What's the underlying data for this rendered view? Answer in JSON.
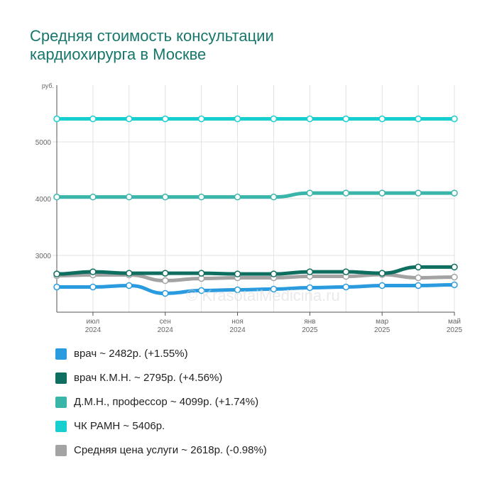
{
  "title": {
    "line1": "Средняя стоимость консультации",
    "line2": "кардиохирурга в Москве"
  },
  "watermark": "© KrasotaiMedicina.ru",
  "legend": [
    {
      "label": "врач ~ 2482р. (+1.55%)",
      "color": "#2b9be0"
    },
    {
      "label": "врач К.М.Н. ~ 2795р. (+4.56%)",
      "color": "#0e6e60"
    },
    {
      "label": "Д.М.Н., профессор ~ 4099р. (+1.74%)",
      "color": "#3ab5aa"
    },
    {
      "label": "ЧК РАМН ~ 5406р.",
      "color": "#18cfcf"
    },
    {
      "label": "Средняя цена услуги ~ 2618р. (-0.98%)",
      "color": "#a3a3a3"
    }
  ],
  "chart_data": {
    "type": "line",
    "y_unit": "руб.",
    "ylim": [
      2000,
      6000
    ],
    "y_ticks": [
      3000,
      4000,
      5000
    ],
    "x_ticks": [
      {
        "month": "июл",
        "year": "2024",
        "index": 1
      },
      {
        "month": "сен",
        "year": "2024",
        "index": 3
      },
      {
        "month": "ноя",
        "year": "2024",
        "index": 5
      },
      {
        "month": "янв",
        "year": "2025",
        "index": 7
      },
      {
        "month": "мар",
        "year": "2025",
        "index": 9
      },
      {
        "month": "май",
        "year": "2025",
        "index": 11
      }
    ],
    "x": [
      "2024-06",
      "2024-07",
      "2024-08",
      "2024-09",
      "2024-10",
      "2024-11",
      "2024-12",
      "2025-01",
      "2025-02",
      "2025-03",
      "2025-04",
      "2025-05"
    ],
    "grid": true,
    "series": [
      {
        "name": "ЧК РАМН ~ 5406р.",
        "color": "#18cfcf",
        "values": [
          5406,
          5406,
          5406,
          5406,
          5406,
          5406,
          5406,
          5406,
          5406,
          5406,
          5406,
          5406
        ]
      },
      {
        "name": "Д.М.Н., профессор ~ 4099р. (+1.74%)",
        "color": "#3ab5aa",
        "values": [
          4029,
          4029,
          4029,
          4029,
          4029,
          4029,
          4029,
          4099,
          4099,
          4099,
          4099,
          4099
        ]
      },
      {
        "name": "Средняя цена услуги ~ 2618р. (-0.98%)",
        "color": "#a3a3a3",
        "values": [
          2644,
          2656,
          2656,
          2556,
          2594,
          2606,
          2606,
          2631,
          2631,
          2663,
          2606,
          2618
        ]
      },
      {
        "name": "врач К.М.Н. ~ 2795р. (+4.56%)",
        "color": "#0e6e60",
        "values": [
          2673,
          2711,
          2686,
          2686,
          2686,
          2673,
          2673,
          2711,
          2711,
          2686,
          2795,
          2795
        ]
      },
      {
        "name": "врач ~ 2482р. (+1.55%)",
        "color": "#2b9be0",
        "values": [
          2444,
          2444,
          2469,
          2331,
          2381,
          2394,
          2407,
          2432,
          2444,
          2469,
          2469,
          2482
        ]
      }
    ]
  }
}
